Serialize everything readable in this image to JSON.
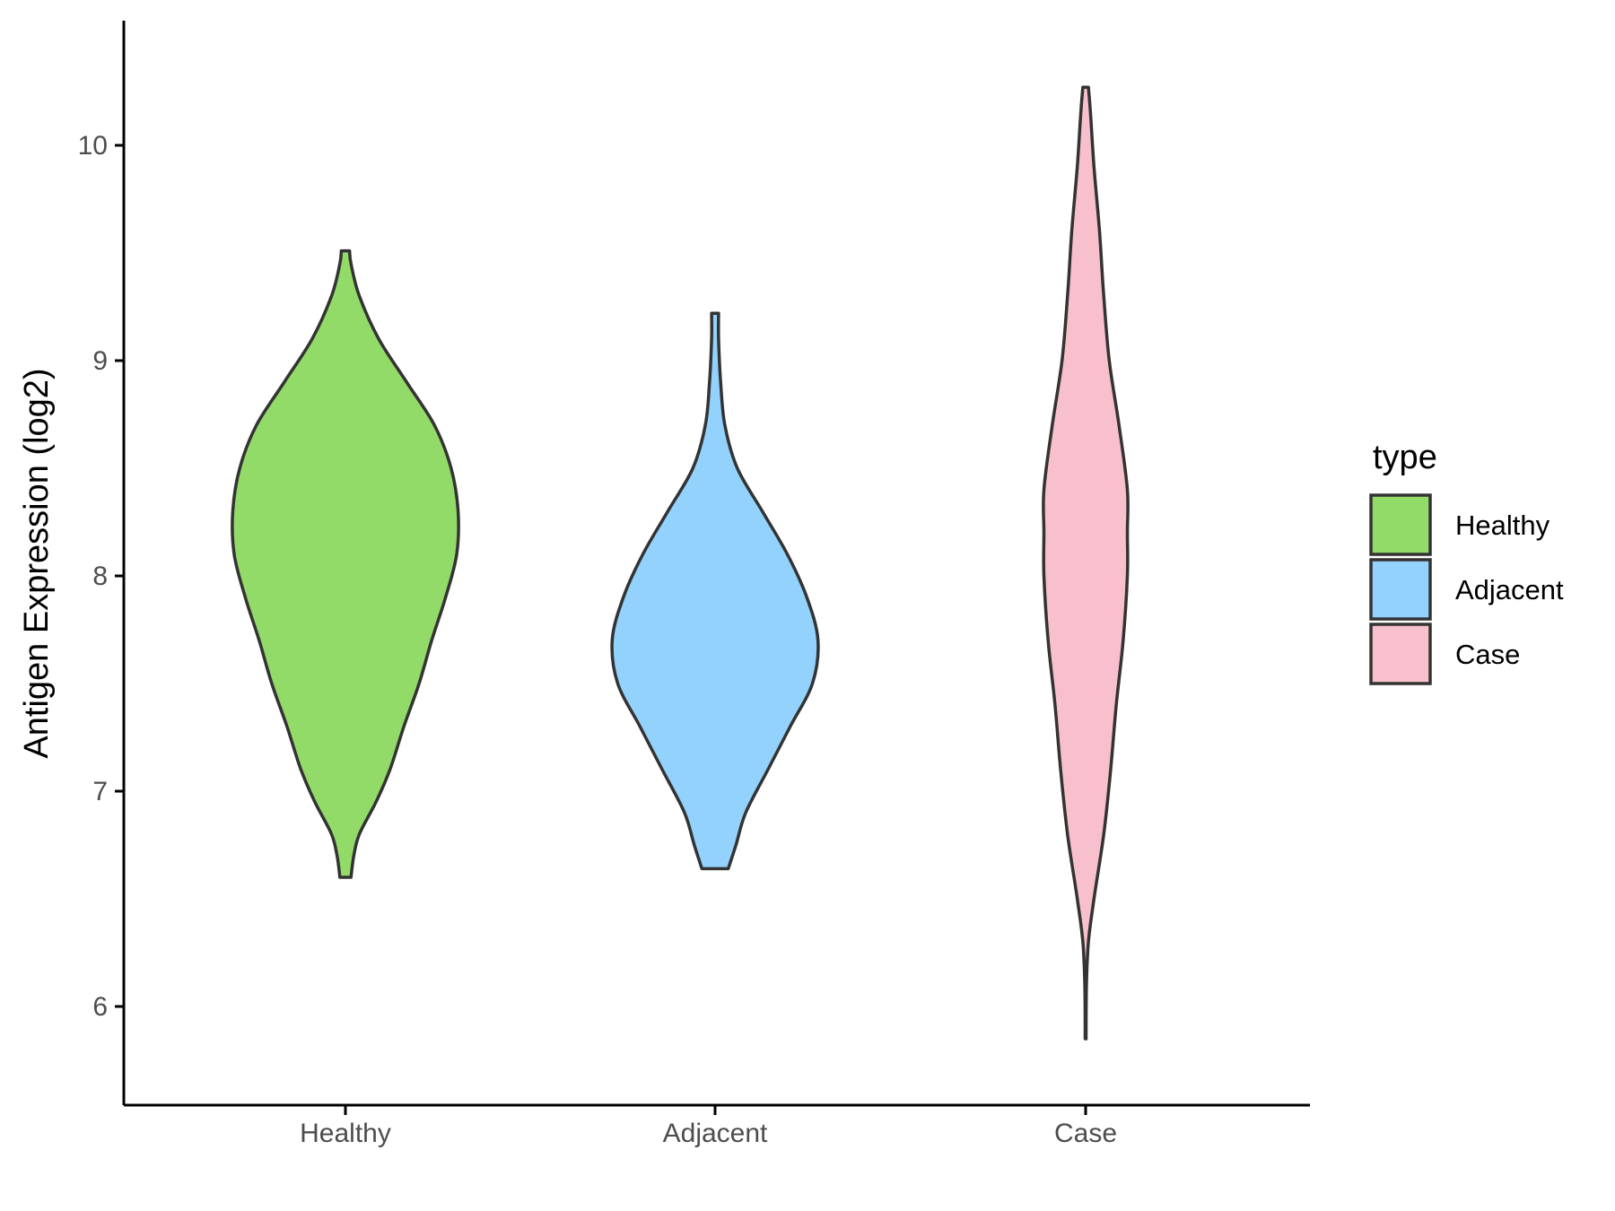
{
  "chart_data": {
    "type": "violin",
    "categories": [
      "Healthy",
      "Adjacent",
      "Case"
    ],
    "ylabel": "Antigen Expression (log2)",
    "xlabel": "",
    "ylim": [
      5.6,
      10.5
    ],
    "yticks": [
      6,
      7,
      8,
      9,
      10
    ],
    "grid": false,
    "legend": {
      "title": "type",
      "position": "right",
      "entries": [
        "Healthy",
        "Adjacent",
        "Case"
      ]
    },
    "colors": {
      "Healthy": "#93DB69",
      "Adjacent": "#92D2FD",
      "Case": "#F8C0CC",
      "outline": "#333333"
    },
    "series": [
      {
        "category": "Healthy",
        "min": 6.6,
        "max": 9.51,
        "density": [
          [
            6.6,
            0.04
          ],
          [
            6.7,
            0.06
          ],
          [
            6.8,
            0.1
          ],
          [
            6.95,
            0.22
          ],
          [
            7.1,
            0.32
          ],
          [
            7.3,
            0.42
          ],
          [
            7.5,
            0.53
          ],
          [
            7.7,
            0.62
          ],
          [
            7.9,
            0.72
          ],
          [
            8.1,
            0.8
          ],
          [
            8.3,
            0.81
          ],
          [
            8.5,
            0.76
          ],
          [
            8.7,
            0.64
          ],
          [
            8.9,
            0.44
          ],
          [
            9.1,
            0.24
          ],
          [
            9.3,
            0.1
          ],
          [
            9.45,
            0.04
          ],
          [
            9.51,
            0.03
          ]
        ]
      },
      {
        "category": "Adjacent",
        "min": 6.64,
        "max": 9.22,
        "density": [
          [
            6.64,
            0.095
          ],
          [
            6.75,
            0.15
          ],
          [
            6.9,
            0.22
          ],
          [
            7.1,
            0.38
          ],
          [
            7.3,
            0.54
          ],
          [
            7.5,
            0.7
          ],
          [
            7.7,
            0.74
          ],
          [
            7.9,
            0.66
          ],
          [
            8.1,
            0.52
          ],
          [
            8.3,
            0.34
          ],
          [
            8.5,
            0.16
          ],
          [
            8.7,
            0.07
          ],
          [
            8.9,
            0.04
          ],
          [
            9.1,
            0.025
          ],
          [
            9.22,
            0.025
          ]
        ]
      },
      {
        "category": "Case",
        "min": 5.85,
        "max": 10.27,
        "density": [
          [
            5.85,
            0.003
          ],
          [
            6.1,
            0.006
          ],
          [
            6.3,
            0.02
          ],
          [
            6.5,
            0.06
          ],
          [
            6.8,
            0.13
          ],
          [
            7.1,
            0.18
          ],
          [
            7.4,
            0.22
          ],
          [
            7.7,
            0.27
          ],
          [
            8.0,
            0.3
          ],
          [
            8.2,
            0.3
          ],
          [
            8.4,
            0.3
          ],
          [
            8.7,
            0.24
          ],
          [
            9.0,
            0.17
          ],
          [
            9.3,
            0.13
          ],
          [
            9.6,
            0.1
          ],
          [
            9.9,
            0.06
          ],
          [
            10.15,
            0.035
          ],
          [
            10.27,
            0.02
          ]
        ]
      }
    ]
  }
}
